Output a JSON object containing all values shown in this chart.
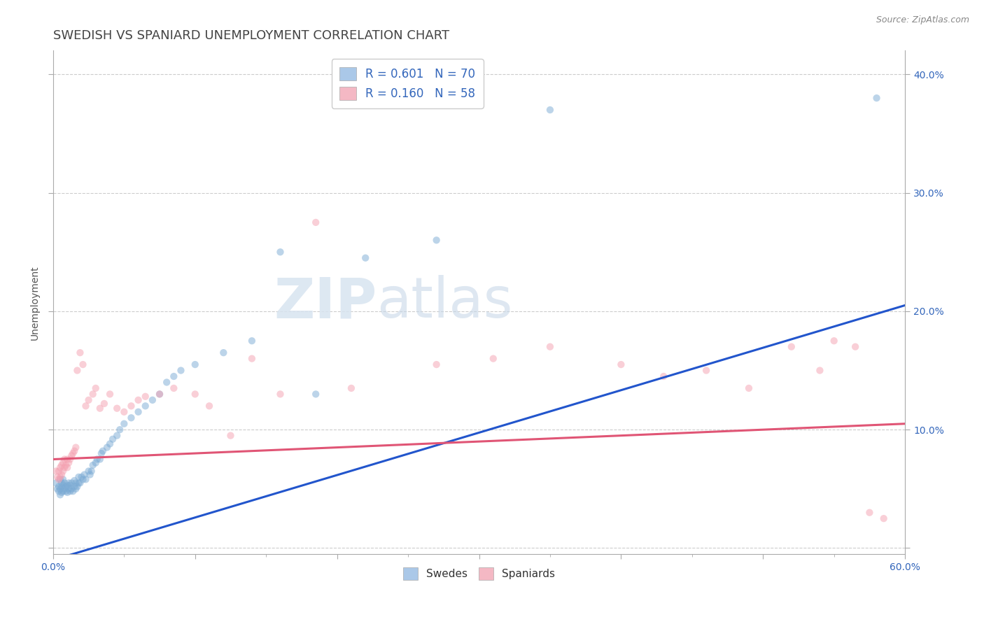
{
  "title": "SWEDISH VS SPANIARD UNEMPLOYMENT CORRELATION CHART",
  "source": "Source: ZipAtlas.com",
  "ylabel": "Unemployment",
  "xlim": [
    0.0,
    0.6
  ],
  "ylim": [
    -0.005,
    0.42
  ],
  "swedes_color": "#7aaad4",
  "spaniards_color": "#f4a0b0",
  "swedes_line_color": "#2255cc",
  "spaniards_line_color": "#e05575",
  "watermark_zip": "ZIP",
  "watermark_atlas": "atlas",
  "grid_color": "#cccccc",
  "background_color": "#ffffff",
  "title_fontsize": 13,
  "axis_label_fontsize": 10,
  "tick_fontsize": 10,
  "marker_size": 55,
  "marker_alpha": 0.5,
  "line_width": 2.2,
  "swedes_x": [
    0.002,
    0.003,
    0.004,
    0.004,
    0.005,
    0.005,
    0.005,
    0.006,
    0.006,
    0.006,
    0.007,
    0.007,
    0.007,
    0.008,
    0.008,
    0.009,
    0.009,
    0.01,
    0.01,
    0.011,
    0.011,
    0.012,
    0.012,
    0.013,
    0.013,
    0.014,
    0.015,
    0.015,
    0.016,
    0.016,
    0.017,
    0.018,
    0.018,
    0.019,
    0.02,
    0.021,
    0.022,
    0.023,
    0.025,
    0.026,
    0.027,
    0.028,
    0.03,
    0.031,
    0.033,
    0.034,
    0.035,
    0.038,
    0.04,
    0.042,
    0.045,
    0.047,
    0.05,
    0.055,
    0.06,
    0.065,
    0.07,
    0.075,
    0.08,
    0.085,
    0.09,
    0.1,
    0.12,
    0.14,
    0.16,
    0.185,
    0.22,
    0.27,
    0.35,
    0.58
  ],
  "swedes_y": [
    0.055,
    0.05,
    0.048,
    0.052,
    0.045,
    0.05,
    0.058,
    0.047,
    0.052,
    0.055,
    0.048,
    0.053,
    0.058,
    0.05,
    0.055,
    0.048,
    0.052,
    0.047,
    0.053,
    0.05,
    0.055,
    0.048,
    0.053,
    0.05,
    0.055,
    0.048,
    0.052,
    0.057,
    0.05,
    0.055,
    0.052,
    0.055,
    0.06,
    0.055,
    0.06,
    0.058,
    0.062,
    0.058,
    0.065,
    0.062,
    0.065,
    0.07,
    0.072,
    0.075,
    0.075,
    0.08,
    0.082,
    0.085,
    0.088,
    0.092,
    0.095,
    0.1,
    0.105,
    0.11,
    0.115,
    0.12,
    0.125,
    0.13,
    0.14,
    0.145,
    0.15,
    0.155,
    0.165,
    0.175,
    0.25,
    0.13,
    0.245,
    0.26,
    0.37,
    0.38
  ],
  "spaniards_x": [
    0.002,
    0.003,
    0.004,
    0.004,
    0.005,
    0.005,
    0.006,
    0.006,
    0.007,
    0.007,
    0.008,
    0.008,
    0.009,
    0.01,
    0.01,
    0.011,
    0.012,
    0.013,
    0.014,
    0.015,
    0.016,
    0.017,
    0.019,
    0.021,
    0.023,
    0.025,
    0.028,
    0.03,
    0.033,
    0.036,
    0.04,
    0.045,
    0.05,
    0.055,
    0.06,
    0.065,
    0.075,
    0.085,
    0.1,
    0.11,
    0.125,
    0.14,
    0.16,
    0.185,
    0.21,
    0.27,
    0.31,
    0.35,
    0.4,
    0.43,
    0.46,
    0.49,
    0.52,
    0.54,
    0.55,
    0.565,
    0.575,
    0.585
  ],
  "spaniards_y": [
    0.065,
    0.06,
    0.058,
    0.065,
    0.06,
    0.068,
    0.062,
    0.07,
    0.065,
    0.072,
    0.068,
    0.075,
    0.07,
    0.068,
    0.075,
    0.072,
    0.075,
    0.078,
    0.08,
    0.082,
    0.085,
    0.15,
    0.165,
    0.155,
    0.12,
    0.125,
    0.13,
    0.135,
    0.118,
    0.122,
    0.13,
    0.118,
    0.115,
    0.12,
    0.125,
    0.128,
    0.13,
    0.135,
    0.13,
    0.12,
    0.095,
    0.16,
    0.13,
    0.275,
    0.135,
    0.155,
    0.16,
    0.17,
    0.155,
    0.145,
    0.15,
    0.135,
    0.17,
    0.15,
    0.175,
    0.17,
    0.03,
    0.025
  ]
}
